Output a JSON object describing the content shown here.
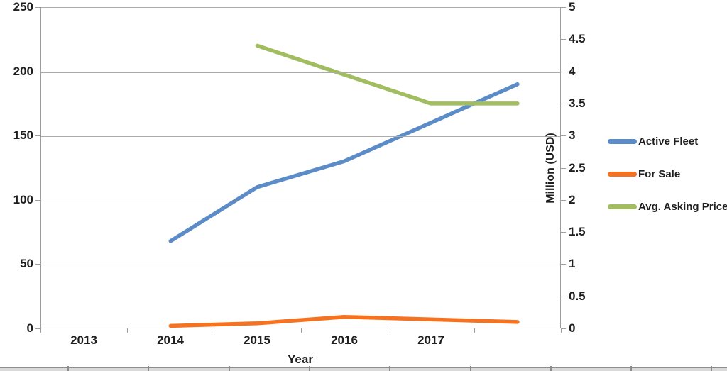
{
  "chart_data": {
    "type": "line",
    "title": "",
    "x_axis": {
      "label": "Year",
      "categories": [
        "2013",
        "2014",
        "2015",
        "2016",
        "2017",
        ""
      ]
    },
    "left_axis": {
      "label": "",
      "min": 0,
      "max": 250,
      "ticks": [
        0,
        50,
        100,
        150,
        200,
        250
      ]
    },
    "right_axis": {
      "label": "Million (USD)",
      "min": 0,
      "max": 5,
      "ticks": [
        0,
        0.5,
        1,
        1.5,
        2,
        2.5,
        3,
        3.5,
        4,
        4.5,
        5
      ]
    },
    "grid": true,
    "legend_position": "right",
    "series": [
      {
        "name": "Active Fleet",
        "axis": "left",
        "color": "#5b8cc8",
        "values": [
          null,
          68,
          110,
          130,
          160,
          190
        ]
      },
      {
        "name": "For Sale",
        "axis": "left",
        "color": "#f57221",
        "values": [
          null,
          2,
          4,
          9,
          7,
          5
        ]
      },
      {
        "name": "Avg. Asking Price",
        "axis": "right",
        "color": "#a2bd5f",
        "values": [
          null,
          null,
          4.4,
          3.95,
          3.5,
          3.5
        ]
      }
    ]
  },
  "colors": {
    "gridline": "#ababab",
    "axis": "#9c9c9c",
    "text": "#1f1f1f"
  }
}
